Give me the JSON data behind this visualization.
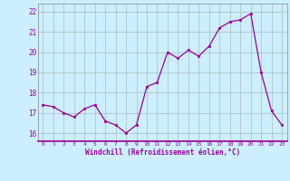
{
  "x": [
    0,
    1,
    2,
    3,
    4,
    5,
    6,
    7,
    8,
    9,
    10,
    11,
    12,
    13,
    14,
    15,
    16,
    17,
    18,
    19,
    20,
    21,
    22,
    23
  ],
  "y": [
    17.4,
    17.3,
    17.0,
    16.8,
    17.2,
    17.4,
    16.6,
    16.4,
    16.0,
    16.4,
    18.3,
    18.5,
    20.0,
    19.7,
    20.1,
    19.8,
    20.3,
    21.2,
    21.5,
    21.6,
    21.9,
    19.0,
    17.1,
    16.4
  ],
  "line_color": "#990099",
  "marker_color": "#990099",
  "bg_color": "#cceeff",
  "grid_color": "#aabbbb",
  "text_color": "#990099",
  "xlabel": "Windchill (Refroidissement éolien,°C)",
  "ylim": [
    15.6,
    22.4
  ],
  "xlim": [
    -0.5,
    23.5
  ],
  "yticks": [
    16,
    17,
    18,
    19,
    20,
    21,
    22
  ],
  "xticks": [
    0,
    1,
    2,
    3,
    4,
    5,
    6,
    7,
    8,
    9,
    10,
    11,
    12,
    13,
    14,
    15,
    16,
    17,
    18,
    19,
    20,
    21,
    22,
    23
  ],
  "title_color": "#660066",
  "spine_color": "#888888"
}
